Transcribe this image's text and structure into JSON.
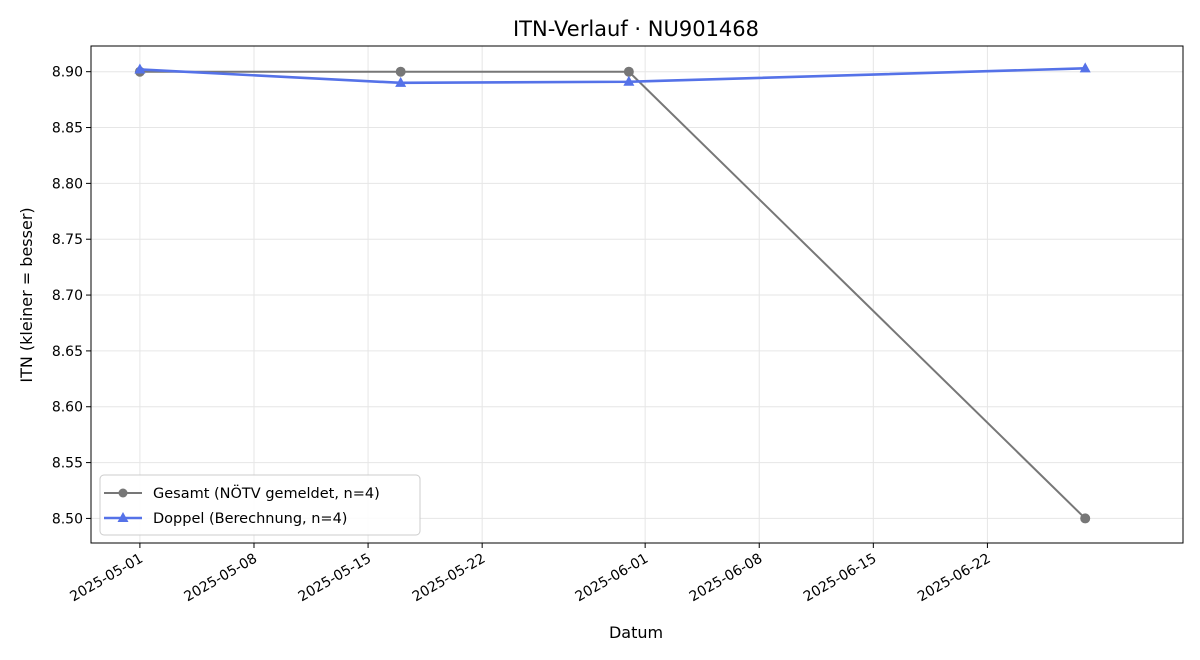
{
  "chart_data": {
    "type": "line",
    "title": "ITN-Verlauf · NU901468",
    "xlabel": "Datum",
    "ylabel": "ITN  (kleiner = besser)",
    "x_is_date": true,
    "xlim": [
      "2025-04-28",
      "2025-07-04"
    ],
    "ylim": [
      8.478,
      8.923
    ],
    "x_ticks": [
      "2025-05-01",
      "2025-05-08",
      "2025-05-15",
      "2025-05-22",
      "2025-06-01",
      "2025-06-08",
      "2025-06-15",
      "2025-06-22"
    ],
    "y_ticks": [
      8.5,
      8.55,
      8.6,
      8.65,
      8.7,
      8.75,
      8.8,
      8.85,
      8.9
    ],
    "y_tick_labels": [
      "8.50",
      "8.55",
      "8.60",
      "8.65",
      "8.70",
      "8.75",
      "8.80",
      "8.85",
      "8.90"
    ],
    "grid": true,
    "legend_position": "lower-left",
    "series": [
      {
        "name": "Gesamt (NÖTV gemeldet, n=4)",
        "color": "#777777",
        "marker": "circle",
        "points": [
          {
            "x": "2025-05-01",
            "y": 8.9
          },
          {
            "x": "2025-05-17",
            "y": 8.9
          },
          {
            "x": "2025-05-31",
            "y": 8.9
          },
          {
            "x": "2025-06-28",
            "y": 8.5
          }
        ]
      },
      {
        "name": "Doppel (Berechnung, n=4)",
        "color": "#5572e8",
        "marker": "triangle",
        "points": [
          {
            "x": "2025-05-01",
            "y": 8.902
          },
          {
            "x": "2025-05-17",
            "y": 8.89
          },
          {
            "x": "2025-05-31",
            "y": 8.891
          },
          {
            "x": "2025-06-28",
            "y": 8.903
          }
        ]
      }
    ]
  }
}
